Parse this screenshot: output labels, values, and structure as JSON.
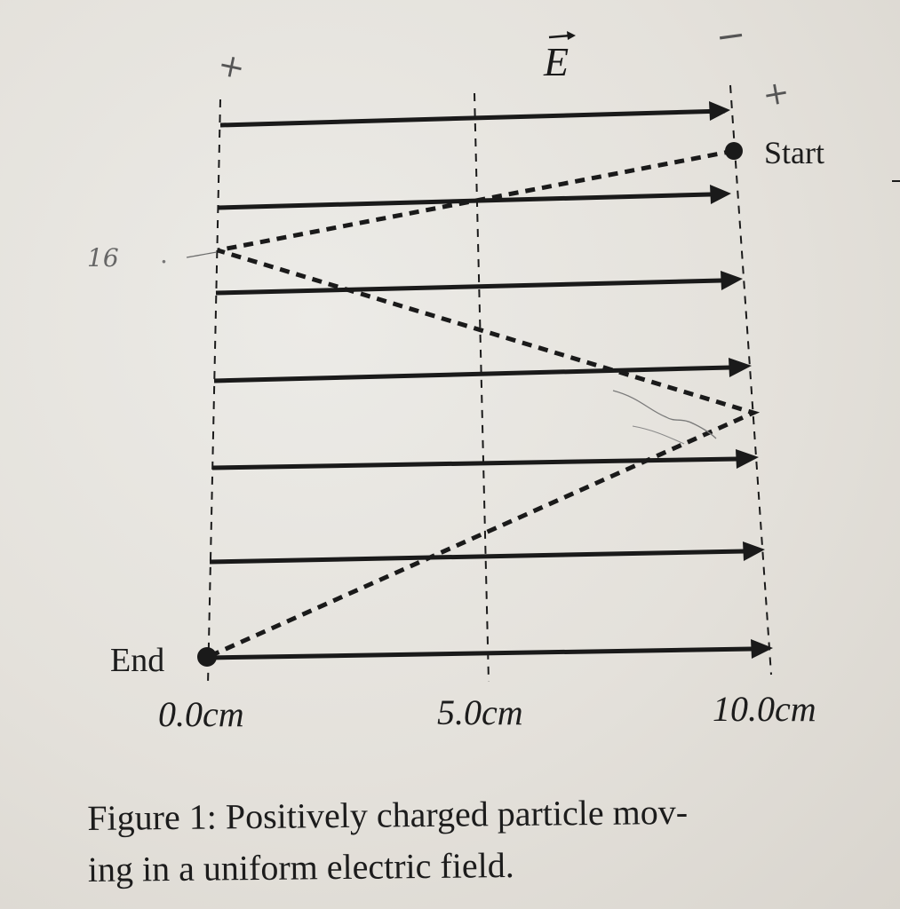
{
  "diagram": {
    "field_label": "E",
    "start_label": "Start",
    "end_label": "End",
    "axis_ticks": [
      "0.0cm",
      "5.0cm",
      "10.0cm"
    ],
    "handwritten": {
      "left_plus": "+",
      "right_minus": "−",
      "right_plus": "+",
      "side_number": "16"
    },
    "caption": "Figure 1: Positively charged particle moving in a uniform electric field.",
    "caption_line1": "Figure 1: Positively charged particle mov-",
    "caption_line2": "ing in a uniform electric field.",
    "colors": {
      "ink": "#1a1a1a",
      "paper": "#e7e4de",
      "pencil": "#6e6e6e"
    }
  }
}
